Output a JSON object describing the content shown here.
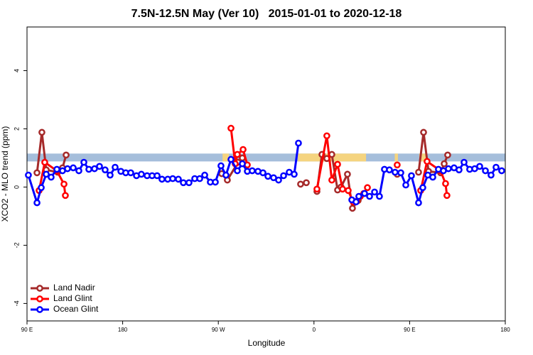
{
  "chart_data": {
    "type": "line",
    "title": "7.5N-12.5N May (Ver 10)   2015-01-01 to 2020-12-18",
    "x_label": "Longitude",
    "y_label": "XCO2 - MLO trend (ppm)",
    "xlim": [
      90,
      540
    ],
    "xticks": [
      {
        "value": 90,
        "label": "90 E"
      },
      180,
      {
        "value": 270,
        "label": "90 W"
      },
      {
        "value": 360,
        "label": "0"
      },
      {
        "value": 450,
        "label": "90 E"
      },
      {
        "value": 540,
        "label": "180"
      }
    ],
    "ylim": [
      -4.6,
      5.5
    ],
    "yticks": [
      -4,
      -2,
      0,
      2,
      4
    ],
    "legend": "bottom-left",
    "surface_band": {
      "ylim": [
        0.88,
        1.15
      ],
      "color": "#a5bedb",
      "land_color": "#f5d47f",
      "land_spans": [
        [
          274,
          280
        ],
        [
          345,
          409
        ],
        [
          436,
          439
        ],
        [
          459,
          466
        ]
      ]
    },
    "series": [
      {
        "name": "Land Nadir",
        "color": "#a52a2a",
        "x": [
          99.4,
          104.0,
          108.1,
          118.8,
          123.4,
          126.8,
          null,
          273.2,
          278.5,
          288.6,
          292.6,
          null,
          347.4,
          352.8,
          null,
          362.8,
          367.5,
          372.1,
          376.8,
          382.2,
          385.5,
          391.5,
          396.2,
          401.6,
          null,
          438.3,
          null,
          458.4,
          463.1,
          467.8,
          479.1,
          482.5,
          485.8
        ],
        "values": [
          0.49,
          1.88,
          0.59,
          0.51,
          0.66,
          1.1,
          null,
          0.46,
          0.24,
          0.85,
          1.0,
          null,
          0.1,
          0.15,
          null,
          -0.15,
          1.12,
          0.98,
          1.12,
          -0.1,
          0.0,
          0.44,
          -0.73,
          -0.46,
          null,
          0.44,
          null,
          0.51,
          1.88,
          0.54,
          0.49,
          0.8,
          1.1
        ]
      },
      {
        "name": "Land Glint",
        "color": "#ff0000",
        "x": [
          101.4,
          106.7,
          118.1,
          124.8,
          126.1,
          null,
          281.9,
          285.9,
          287.9,
          293.3,
          297.3,
          null,
          362.8,
          372.1,
          376.8,
          382.2,
          386.9,
          392.2,
          396.9,
          400.2,
          403.6,
          406.9,
          410.3,
          null,
          438.3,
          null,
          460.4,
          466.4,
          479.1,
          483.8,
          485.1
        ],
        "values": [
          -0.12,
          0.85,
          0.56,
          0.1,
          -0.29,
          null,
          2.02,
          0.8,
          1.12,
          1.29,
          0.76,
          null,
          -0.07,
          1.76,
          0.24,
          0.78,
          -0.07,
          -0.12,
          -0.51,
          -0.49,
          -0.32,
          -0.22,
          -0.02,
          null,
          0.76,
          null,
          -0.12,
          0.88,
          0.56,
          0.12,
          -0.29
        ]
      },
      {
        "name": "Ocean Glint",
        "color": "#0000ff",
        "x": [
          91.3,
          99.4,
          103.4,
          108.1,
          112.7,
          118.1,
          123.4,
          128.1,
          133.5,
          138.8,
          143.5,
          148.2,
          153.5,
          158.2,
          163.5,
          168.2,
          172.9,
          178.3,
          182.9,
          187.6,
          193.0,
          197.6,
          203.0,
          207.7,
          212.4,
          217.0,
          222.4,
          227.1,
          232.4,
          237.1,
          242.4,
          247.8,
          252.5,
          257.2,
          262.5,
          267.2,
          272.5,
          277.2,
          281.9,
          287.9,
          292.6,
          297.3,
          301.9,
          307.3,
          312.0,
          316.7,
          322.0,
          326.7,
          331.4,
          336.7,
          341.4,
          345.4,
          null,
          395.6,
          399.6,
          402.2,
          407.6,
          412.3,
          417.0,
          421.6,
          426.3,
          431.0,
          436.3,
          441.7,
          446.4,
          451.7,
          458.4,
          462.4,
          467.1,
          471.8,
          477.1,
          481.8,
          486.5,
          491.8,
          496.5,
          501.2,
          506.5,
          511.2,
          515.9,
          521.3,
          526.6,
          531.3,
          536.6
        ],
        "values": [
          0.41,
          -0.54,
          -0.02,
          0.44,
          0.34,
          0.61,
          0.56,
          0.63,
          0.66,
          0.56,
          0.85,
          0.61,
          0.63,
          0.71,
          0.59,
          0.41,
          0.68,
          0.54,
          0.49,
          0.49,
          0.39,
          0.44,
          0.39,
          0.39,
          0.39,
          0.27,
          0.27,
          0.29,
          0.27,
          0.15,
          0.15,
          0.29,
          0.29,
          0.41,
          0.17,
          0.17,
          0.73,
          0.41,
          0.95,
          0.56,
          0.8,
          0.54,
          0.56,
          0.54,
          0.49,
          0.37,
          0.32,
          0.24,
          0.39,
          0.51,
          0.44,
          1.51,
          null,
          -0.44,
          -0.51,
          -0.32,
          -0.22,
          -0.32,
          -0.17,
          -0.32,
          0.61,
          0.59,
          0.51,
          0.49,
          0.07,
          0.39,
          -0.54,
          -0.02,
          0.41,
          0.34,
          0.61,
          0.56,
          0.63,
          0.66,
          0.59,
          0.85,
          0.61,
          0.63,
          0.71,
          0.56,
          0.41,
          0.68,
          0.56
        ]
      }
    ]
  }
}
